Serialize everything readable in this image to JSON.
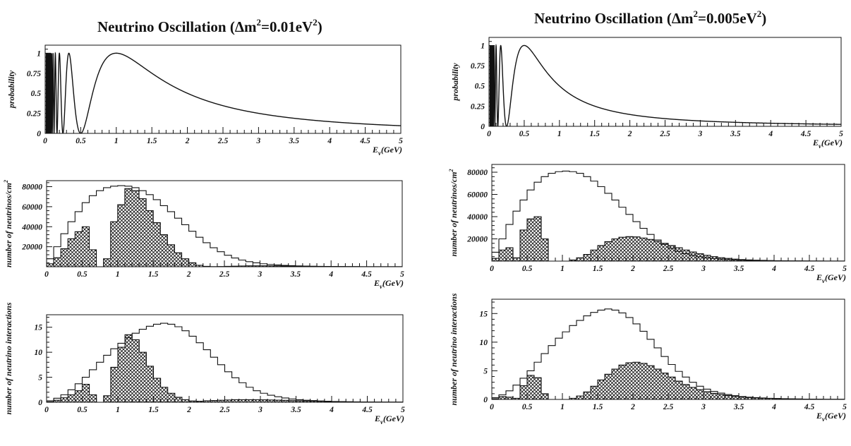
{
  "chart_data": [
    {
      "panel": "left",
      "title_text": "Neutrino Oscillation (",
      "title_delta": "Δm",
      "title_exp": "2",
      "title_value": "=0.01eV",
      "title_unit_exp": "2",
      "title_close": ")",
      "plots": [
        {
          "type": "line",
          "ylabel": "probability",
          "xlabel_main": "E",
          "xlabel_sub": "ν",
          "xlabel_unit": "(GeV)",
          "xlim": [
            0,
            5
          ],
          "ylim": [
            0,
            1.1
          ],
          "x_ticks": [
            "0",
            "0.5",
            "1",
            "1.5",
            "2",
            "2.5",
            "3",
            "3.5",
            "4",
            "4.5",
            "5"
          ],
          "y_ticks": [
            "0",
            "0.25",
            "0.5",
            "0.75",
            "1"
          ],
          "series": [
            {
              "formula": "sin^2(1.27 * 1.57 / E)",
              "dm2": 0.01,
              "osc_phase": 1.5708
            }
          ]
        },
        {
          "type": "histogram",
          "ylabel": "number of neutrinos/cm",
          "ylabel_exp": "2",
          "xlabel_main": "E",
          "xlabel_sub": "ν",
          "xlabel_unit": "(GeV)",
          "xlim": [
            0,
            5
          ],
          "ylim": [
            0,
            86000
          ],
          "x_ticks": [
            "0",
            "0.5",
            "1",
            "1.5",
            "2",
            "2.5",
            "3",
            "3.5",
            "4",
            "4.5",
            "5"
          ],
          "y_ticks": [
            "20000",
            "40000",
            "60000",
            "80000"
          ],
          "y_tick_values": [
            20000,
            40000,
            60000,
            80000
          ],
          "bin_width": 0.1,
          "bins_start": 0,
          "unoscillated": [
            8000,
            20000,
            33000,
            45000,
            55000,
            64000,
            71000,
            76000,
            79000,
            80500,
            81000,
            80500,
            79000,
            76000,
            72000,
            67000,
            61000,
            55000,
            48500,
            42000,
            35500,
            29500,
            24000,
            19000,
            15000,
            11500,
            8800,
            6700,
            5100,
            3900,
            3000,
            2300,
            1800,
            1400,
            1100,
            850,
            650,
            500,
            400,
            300,
            240,
            190,
            150,
            120,
            95,
            75,
            60,
            48,
            38,
            30
          ],
          "oscillated": [
            3000,
            9000,
            18000,
            28000,
            35000,
            40000,
            17000,
            0,
            8000,
            45000,
            62000,
            78000,
            76000,
            68000,
            56000,
            44000,
            32000,
            22000,
            14000,
            8000,
            4000,
            1500,
            400,
            100,
            200,
            400,
            600,
            800,
            900,
            950,
            950,
            900,
            850,
            780,
            700,
            600,
            500,
            420,
            350,
            280,
            230,
            180,
            150,
            120,
            95,
            75,
            60,
            48,
            38,
            30
          ]
        },
        {
          "type": "histogram",
          "ylabel": "number of neutrino interactions",
          "xlabel_main": "E",
          "xlabel_sub": "ν",
          "xlabel_unit": "(GeV)",
          "xlim": [
            0,
            5
          ],
          "ylim": [
            0,
            17.5
          ],
          "x_ticks": [
            "0",
            "0.5",
            "1",
            "1.5",
            "2",
            "2.5",
            "3",
            "3.5",
            "4",
            "4.5",
            "5"
          ],
          "y_ticks": [
            "0",
            "5",
            "10",
            "15"
          ],
          "y_tick_values": [
            0,
            5,
            10,
            15
          ],
          "bin_width": 0.1,
          "bins_start": 0,
          "unoscillated": [
            0.3,
            0.8,
            1.5,
            2.5,
            3.7,
            5.0,
            6.5,
            8.0,
            9.4,
            10.7,
            11.8,
            12.9,
            13.8,
            14.6,
            15.2,
            15.6,
            15.8,
            15.6,
            15.1,
            14.3,
            13.2,
            11.9,
            10.5,
            9.0,
            7.5,
            6.1,
            4.9,
            3.9,
            3.0,
            2.3,
            1.8,
            1.4,
            1.1,
            0.85,
            0.65,
            0.5,
            0.4,
            0.32,
            0.25,
            0.2,
            0.16,
            0.13,
            0.1,
            0.08,
            0.06,
            0.05,
            0.04,
            0.03,
            0.03,
            0.02
          ],
          "oscillated": [
            0.1,
            0.4,
            0.9,
            1.5,
            2.3,
            3.6,
            1.5,
            0,
            1.3,
            7.0,
            11.0,
            13.5,
            12.5,
            10.0,
            7.2,
            4.8,
            3.0,
            1.8,
            1.0,
            0.5,
            0.25,
            0.2,
            0.3,
            0.35,
            0.4,
            0.45,
            0.5,
            0.5,
            0.5,
            0.5,
            0.48,
            0.45,
            0.42,
            0.38,
            0.33,
            0.29,
            0.25,
            0.21,
            0.18,
            0.15,
            0.12,
            0.1,
            0.08,
            0.06,
            0.05,
            0.04,
            0.03,
            0.03,
            0.02,
            0.02
          ]
        }
      ]
    },
    {
      "panel": "right",
      "title_text": "Neutrino Oscillation (",
      "title_delta": "Δm",
      "title_exp": "2",
      "title_value": "=0.005eV",
      "title_unit_exp": "2",
      "title_close": ")",
      "plots": [
        {
          "type": "line",
          "ylabel": "probability",
          "xlabel_main": "E",
          "xlabel_sub": "ν",
          "xlabel_unit": "(GeV)",
          "xlim": [
            0,
            5
          ],
          "ylim": [
            0,
            1.1
          ],
          "x_ticks": [
            "0",
            "0.5",
            "1",
            "1.5",
            "2",
            "2.5",
            "3",
            "3.5",
            "4",
            "4.5",
            "5"
          ],
          "y_ticks": [
            "0",
            "0.25",
            "0.5",
            "0.75",
            "1"
          ],
          "series": [
            {
              "formula": "sin^2(0.785 / E)",
              "dm2": 0.005,
              "osc_phase": 0.7854
            }
          ]
        },
        {
          "type": "histogram",
          "ylabel": "number of neutrinos/cm",
          "ylabel_exp": "2",
          "xlabel_main": "E",
          "xlabel_sub": "ν",
          "xlabel_unit": "(GeV)",
          "xlim": [
            0,
            5
          ],
          "ylim": [
            0,
            87000
          ],
          "x_ticks": [
            "0",
            "0.5",
            "1",
            "1.5",
            "2",
            "2.5",
            "3",
            "3.5",
            "4",
            "4.5",
            "5"
          ],
          "y_ticks": [
            "20000",
            "40000",
            "60000",
            "80000"
          ],
          "y_tick_values": [
            20000,
            40000,
            60000,
            80000
          ],
          "bin_width": 0.1,
          "bins_start": 0,
          "unoscillated": [
            8000,
            20000,
            33000,
            45000,
            55000,
            64000,
            71000,
            76000,
            79000,
            80500,
            81000,
            80500,
            79000,
            76000,
            72000,
            67000,
            61000,
            55000,
            48500,
            42000,
            35500,
            29500,
            24000,
            19000,
            15000,
            11500,
            8800,
            6700,
            5100,
            3900,
            3000,
            2300,
            1800,
            1400,
            1100,
            850,
            650,
            500,
            400,
            300,
            240,
            190,
            150,
            120,
            95,
            75,
            60,
            48,
            38,
            30
          ],
          "oscillated": [
            2500,
            10000,
            12000,
            3000,
            28000,
            38000,
            40000,
            20000,
            0,
            0,
            0,
            1000,
            3000,
            6000,
            10000,
            14000,
            17500,
            20000,
            21500,
            22000,
            21800,
            20800,
            19500,
            17800,
            16000,
            14000,
            12000,
            10000,
            8200,
            6600,
            5200,
            4000,
            3100,
            2400,
            1800,
            1400,
            1100,
            850,
            650,
            500,
            400,
            310,
            240,
            190,
            150,
            120,
            95,
            75,
            60,
            45
          ]
        },
        {
          "type": "histogram",
          "ylabel": "number of neutrino interactions",
          "xlabel_main": "E",
          "xlabel_sub": "ν",
          "xlabel_unit": "(GeV)",
          "xlim": [
            0,
            5
          ],
          "ylim": [
            0,
            17.5
          ],
          "x_ticks": [
            "0",
            "0.5",
            "1",
            "1.5",
            "2",
            "2.5",
            "3",
            "3.5",
            "4",
            "4.5",
            "5"
          ],
          "y_ticks": [
            "0",
            "5",
            "10",
            "15"
          ],
          "y_tick_values": [
            0,
            5,
            10,
            15
          ],
          "bin_width": 0.1,
          "bins_start": 0,
          "unoscillated": [
            0.3,
            0.8,
            1.5,
            2.5,
            3.7,
            5.0,
            6.5,
            8.0,
            9.4,
            10.7,
            11.8,
            12.9,
            13.8,
            14.6,
            15.2,
            15.6,
            15.8,
            15.6,
            15.1,
            14.3,
            13.2,
            11.9,
            10.5,
            9.0,
            7.5,
            6.1,
            4.9,
            3.9,
            3.0,
            2.3,
            1.8,
            1.4,
            1.1,
            0.85,
            0.65,
            0.5,
            0.4,
            0.32,
            0.25,
            0.2,
            0.16,
            0.13,
            0.1,
            0.08,
            0.06,
            0.05,
            0.04,
            0.03,
            0.03,
            0.02
          ],
          "oscillated": [
            0.1,
            0.5,
            0.4,
            0.2,
            2.4,
            4.2,
            3.8,
            1.0,
            0,
            0,
            0,
            0.2,
            0.6,
            1.3,
            2.3,
            3.4,
            4.4,
            5.3,
            6.0,
            6.4,
            6.5,
            6.3,
            5.9,
            5.3,
            4.6,
            3.9,
            3.2,
            2.6,
            2.1,
            1.7,
            1.35,
            1.05,
            0.85,
            0.68,
            0.53,
            0.42,
            0.33,
            0.26,
            0.21,
            0.17,
            0.14,
            0.11,
            0.09,
            0.07,
            0.06,
            0.05,
            0.04,
            0.03,
            0.03,
            0.02
          ]
        }
      ]
    }
  ]
}
